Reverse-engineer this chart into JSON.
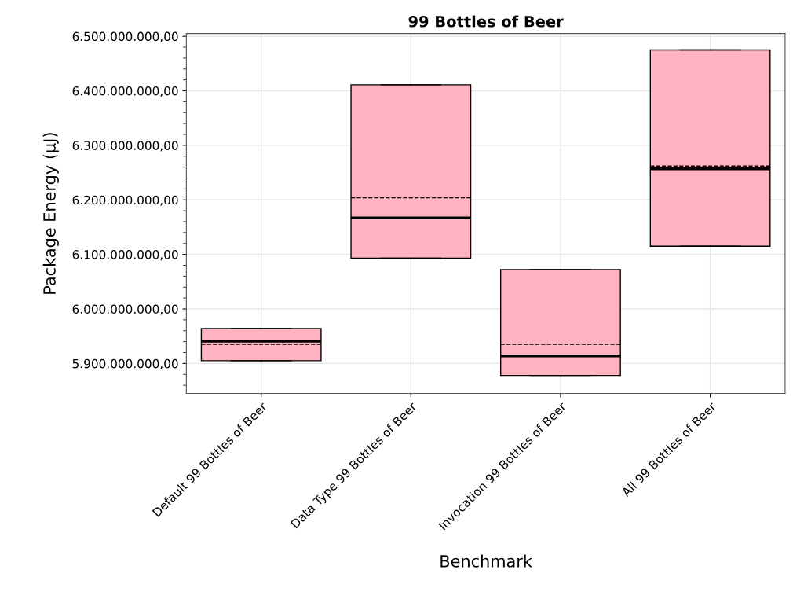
{
  "chart_data": {
    "type": "box",
    "title": "99 Bottles of Beer",
    "xlabel": "Benchmark",
    "ylabel": "Package Energy (µJ)",
    "categories": [
      "Default 99 Bottles of Beer",
      "Data Type 99 Bottles of Beer",
      "Invocation 99 Bottles of Beer",
      "All 99 Bottles of Beer"
    ],
    "boxes": [
      {
        "low": 5905000000,
        "q1": 5905000000,
        "median": 5941000000,
        "q3": 5964000000,
        "high": 5964000000,
        "mean": 5935000000
      },
      {
        "low": 6093000000,
        "q1": 6093000000,
        "median": 6167000000,
        "q3": 6411000000,
        "high": 6411000000,
        "mean": 6204000000
      },
      {
        "low": 5878000000,
        "q1": 5878000000,
        "median": 5914000000,
        "q3": 6072000000,
        "high": 6072000000,
        "mean": 5935000000
      },
      {
        "low": 6115000000,
        "q1": 6115000000,
        "median": 6257000000,
        "q3": 6475000000,
        "high": 6475000000,
        "mean": 6262000000
      }
    ],
    "color": "#ffb3c1",
    "ylim": [
      5845000000,
      6505000000
    ],
    "yticks": [
      {
        "value": 5900000000,
        "label": "5.900.000.000,00"
      },
      {
        "value": 6000000000,
        "label": "6.000.000.000,00"
      },
      {
        "value": 6100000000,
        "label": "6.100.000.000,00"
      },
      {
        "value": 6200000000,
        "label": "6.200.000.000,00"
      },
      {
        "value": 6300000000,
        "label": "6.300.000.000,00"
      },
      {
        "value": 6400000000,
        "label": "6.400.000.000,00"
      },
      {
        "value": 6500000000,
        "label": "6.500.000.000,00"
      }
    ],
    "grid": true
  }
}
